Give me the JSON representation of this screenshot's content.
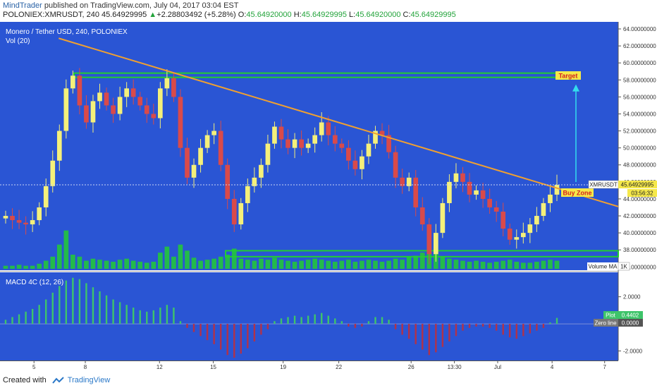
{
  "header": {
    "author": "MindTrader",
    "published": " published on TradingView.com, July 04, 2017 03:04 EST",
    "symbol": "POLONIEX:XMRUSDT, 240",
    "price": "45.64929995",
    "change_arrow": "▲",
    "change": "+2.28803492 (+5.28%)",
    "o_label": "O:",
    "o_value": "45.64920000",
    "h_label": "H:",
    "h_value": "45.64929995",
    "l_label": "L:",
    "l_value": "45.64920000",
    "c_label": "C:",
    "c_value": "45.64929995"
  },
  "main_pane": {
    "title": "Monero / Tether USD, 240, POLONIEX",
    "vol_label": "Vol (20)",
    "last_price_tag": "45.64929995",
    "symbol_tag": "XMRUSDT",
    "countdown": "03:56:32",
    "target_label": "Target",
    "buy_zone_label": "Buy Zone",
    "volume_ma_label": "Volume MA",
    "volume_ma_value": "1K"
  },
  "macd_pane": {
    "title": "MACD 4C (12, 26)",
    "plot_label": "Plot",
    "plot_value": "0.4402",
    "zero_label": "Zero line",
    "zero_value": "0.0000"
  },
  "footer": {
    "created": "Created with",
    "brand": "TradingView"
  },
  "colors": {
    "background": "#2a55d4",
    "bull_candle": "#f5f07a",
    "bear_candle": "#d94a4a",
    "trendline": "#f0a030",
    "zone": "#22cc33",
    "arrow": "#33ddee",
    "label_bg": "#f5e84a",
    "label_text": "#d42020",
    "macd_pos": "#3ec46a",
    "macd_neg": "#b1324a"
  },
  "chart_data": [
    {
      "type": "line",
      "pane": "price",
      "y_axis": {
        "ylim": [
          36,
          64
        ],
        "ticks": [
          "64.00000000",
          "62.00000000",
          "60.00000000",
          "58.00000000",
          "56.00000000",
          "54.00000000",
          "52.00000000",
          "50.00000000",
          "48.00000000",
          "46.00000000",
          "44.00000000",
          "42.00000000",
          "40.00000000",
          "38.00000000",
          "36.00000000"
        ]
      },
      "x_ticks": [
        "5",
        "8",
        "12",
        "15",
        "19",
        "22",
        "26",
        "13:30",
        "Jul",
        "4",
        "7"
      ],
      "close_path": [
        42.0,
        41.5,
        41.2,
        41.0,
        41.5,
        43.0,
        45.5,
        48.5,
        52.0,
        57.0,
        58.5,
        55.0,
        53.0,
        55.5,
        56.5,
        55.0,
        54.0,
        56.0,
        57.0,
        56.0,
        55.0,
        54.0,
        53.5,
        57.0,
        58.2,
        56.0,
        50.0,
        46.5,
        48.0,
        50.0,
        51.5,
        52.0,
        48.0,
        44.0,
        41.0,
        43.5,
        45.5,
        46.5,
        48.0,
        50.5,
        52.5,
        51.0,
        50.0,
        51.0,
        50.0,
        50.5,
        51.5,
        53.0,
        51.5,
        50.5,
        50.0,
        48.5,
        47.5,
        49.0,
        50.5,
        52.0,
        51.5,
        49.5,
        46.5,
        45.5,
        46.5,
        43.0,
        41.0,
        37.5,
        40.0,
        43.5,
        46.0,
        47.0,
        46.0,
        44.5,
        45.0,
        44.0,
        43.0,
        42.5,
        40.5,
        39.2,
        39.5,
        40.0,
        41.0,
        42.0,
        43.5,
        44.5,
        45.65
      ],
      "trendline": {
        "from": [
          0.095,
          62.9
        ],
        "to": [
          1.0,
          43.1
        ]
      },
      "resistance_zone": [
        58.3,
        58.8
      ],
      "support_zone": [
        37.2,
        37.9
      ],
      "last_price": 45.64929995
    },
    {
      "type": "bar",
      "pane": "volume",
      "series": [
        {
          "name": "Vol (20)",
          "values": [
            0.3,
            0.3,
            0.4,
            0.3,
            0.3,
            0.5,
            0.8,
            1.2,
            2.4,
            3.8,
            1.4,
            1.2,
            0.8,
            1.0,
            0.9,
            0.8,
            0.7,
            0.9,
            1.0,
            0.8,
            0.7,
            0.6,
            0.7,
            1.6,
            2.2,
            1.2,
            2.4,
            1.8,
            1.1,
            0.8,
            0.9,
            1.0,
            1.2,
            1.4,
            2.0,
            1.0,
            0.9,
            0.8,
            1.0,
            0.9,
            1.1,
            0.9,
            0.8,
            0.7,
            0.8,
            0.9,
            1.0,
            0.9,
            0.8,
            0.7,
            0.8,
            0.9,
            0.7,
            0.8,
            0.9,
            0.8,
            0.7,
            0.8,
            1.0,
            0.9,
            1.2,
            1.3,
            1.6,
            2.6,
            1.8,
            1.2,
            1.0,
            0.9,
            0.8,
            0.7,
            0.8,
            0.7,
            0.6,
            0.7,
            0.8,
            0.9,
            0.7,
            0.6,
            0.6,
            0.7,
            0.8,
            0.9,
            0.8
          ]
        }
      ]
    },
    {
      "type": "bar",
      "pane": "macd",
      "y_axis": {
        "ylim": [
          -2.6,
          3.7
        ],
        "ticks": [
          "2.0000",
          "-2.0000"
        ]
      },
      "series": [
        {
          "name": "MACD 4C (12, 26)",
          "values": [
            0.3,
            0.5,
            0.7,
            0.9,
            1.1,
            1.4,
            1.8,
            2.3,
            2.8,
            3.2,
            3.4,
            3.3,
            3.0,
            2.7,
            2.4,
            2.1,
            1.8,
            1.6,
            1.4,
            1.2,
            1.0,
            0.9,
            1.0,
            1.2,
            1.4,
            1.2,
            0.2,
            -0.3,
            -0.6,
            -0.9,
            -1.2,
            -1.5,
            -1.9,
            -2.3,
            -2.5,
            -2.2,
            -1.8,
            -1.3,
            -0.8,
            -0.4,
            0.2,
            0.4,
            0.5,
            0.6,
            0.5,
            0.6,
            0.7,
            0.8,
            0.6,
            0.4,
            0.2,
            -0.2,
            -0.3,
            -0.2,
            0.2,
            0.5,
            0.5,
            0.3,
            -0.4,
            -0.8,
            -1.1,
            -1.5,
            -1.9,
            -2.3,
            -2.1,
            -1.7,
            -1.3,
            -0.9,
            -0.5,
            -0.3,
            -0.2,
            -0.2,
            -0.3,
            -0.5,
            -0.8,
            -1.0,
            -1.1,
            -0.9,
            -0.7,
            -0.5,
            -0.3,
            0.1,
            0.44
          ]
        }
      ]
    }
  ]
}
